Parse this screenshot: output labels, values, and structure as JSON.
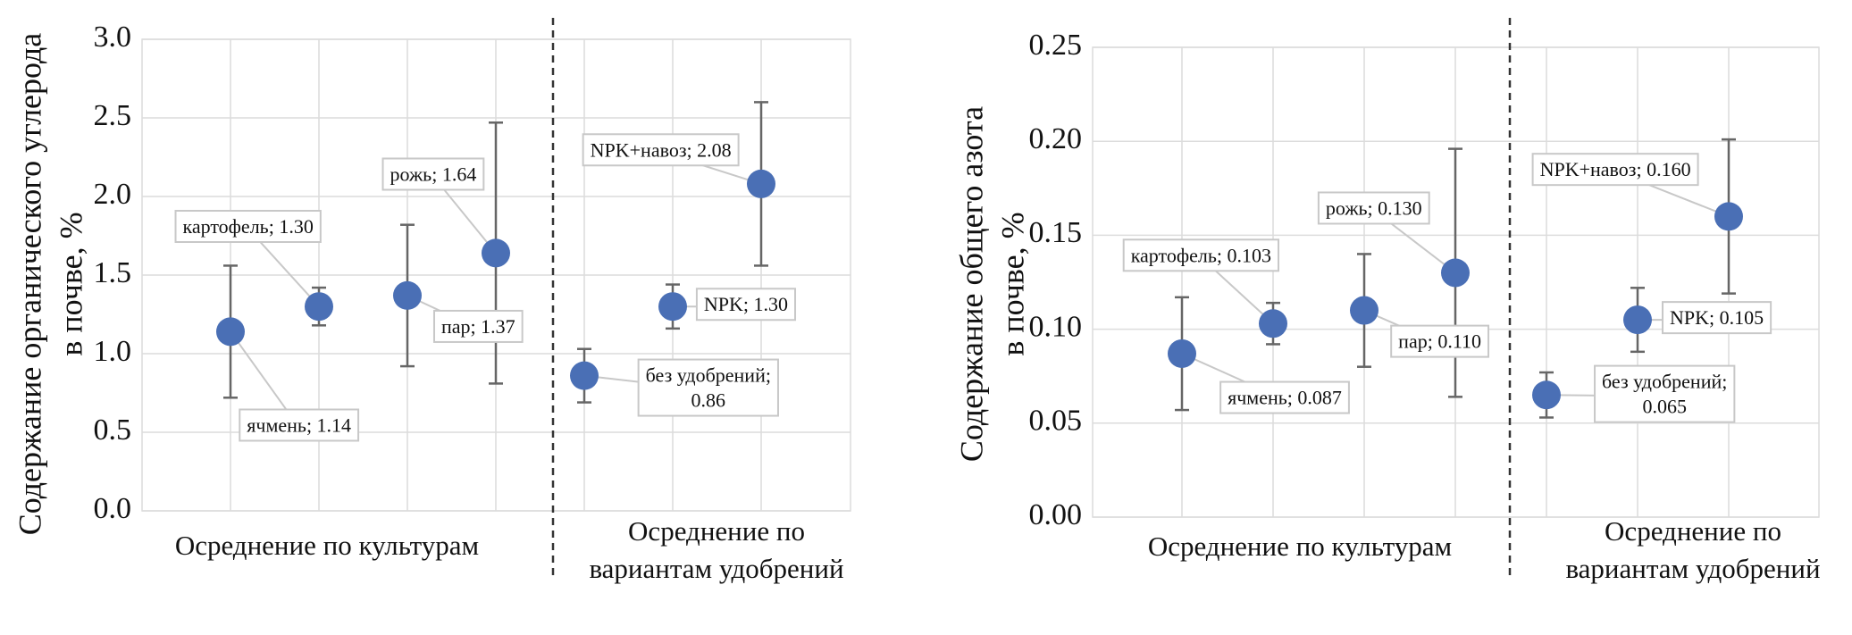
{
  "chart_data": [
    {
      "type": "errorbar",
      "color": "#4a6fb5",
      "grid": true,
      "ylabel": [
        "Содержание органического углерода",
        "в почве, %"
      ],
      "ylim": [
        0,
        3
      ],
      "yticks": [
        {
          "value": 0,
          "label": "0.0"
        },
        0.5,
        {
          "value": 1,
          "label": "1.0"
        },
        1.5,
        {
          "value": 2,
          "label": "2.0"
        },
        2.5,
        {
          "value": 3,
          "label": "3.0"
        }
      ],
      "series": [
        {
          "name": "Осреднение по культурам",
          "values": [
            1.14,
            1.3,
            1.37,
            1.64
          ],
          "errors": [
            0.42,
            0.12,
            0.45,
            0.83
          ],
          "value_labels": [
            "ячмень; 1.14",
            "картофель; 1.30",
            "пар; 1.37",
            "рожь; 1.64"
          ]
        },
        {
          "name": "Осреднение по\nвариантам удобрений",
          "values": [
            0.86,
            1.3,
            2.08
          ],
          "errors": [
            0.17,
            0.14,
            0.52
          ],
          "value_labels": [
            "без удобрений;\n0.86",
            "NPK; 1.30",
            "NPK+навоз; 2.08"
          ]
        }
      ]
    },
    {
      "type": "errorbar",
      "color": "#4a6fb5",
      "grid": true,
      "ylabel": [
        "Содержание общего азота",
        "в почве, %"
      ],
      "ylim": [
        0,
        0.25
      ],
      "yticks": [
        {
          "value": 0,
          "label": "0.00"
        },
        0.05,
        {
          "value": 0.1,
          "label": "0.10"
        },
        0.15,
        {
          "value": 0.2,
          "label": "0.20"
        },
        0.25
      ],
      "series": [
        {
          "name": "Осреднение по культурам",
          "values": [
            0.087,
            0.103,
            0.11,
            0.13
          ],
          "errors": [
            0.03,
            0.011,
            0.03,
            0.066
          ],
          "value_labels": [
            "ячмень; 0.087",
            "картофель; 0.103",
            "пар; 0.110",
            "рожь; 0.130"
          ]
        },
        {
          "name": "Осреднение по\nвариантам удобрений",
          "values": [
            0.065,
            0.105,
            0.16
          ],
          "errors": [
            0.012,
            0.017,
            0.041
          ],
          "value_labels": [
            "без удобрений;\n0.065",
            "NPK; 0.105",
            "NPK+навоз; 0.160"
          ]
        }
      ]
    }
  ]
}
